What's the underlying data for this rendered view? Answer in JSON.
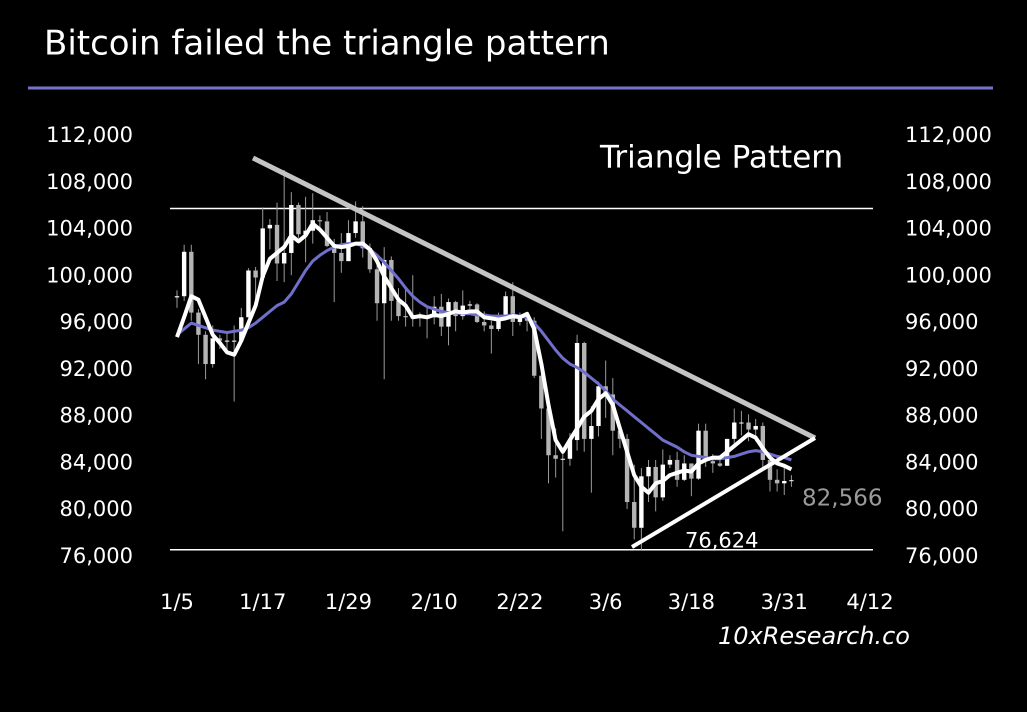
{
  "chart_data": {
    "type": "candlestick",
    "title": "Bitcoin failed the triangle pattern",
    "annotation": "Triangle Pattern",
    "source": "10xResearch.co",
    "last_label": {
      "value": 82566,
      "label": "82,566"
    },
    "low_label": {
      "value": 76624,
      "label": "76,624"
    },
    "reference_lines": [
      105800,
      76624
    ],
    "x": [
      "1/5",
      "1/6",
      "1/7",
      "1/8",
      "1/9",
      "1/10",
      "1/11",
      "1/12",
      "1/13",
      "1/14",
      "1/15",
      "1/16",
      "1/17",
      "1/18",
      "1/19",
      "1/20",
      "1/21",
      "1/22",
      "1/23",
      "1/24",
      "1/25",
      "1/26",
      "1/27",
      "1/28",
      "1/29",
      "1/30",
      "1/31",
      "2/1",
      "2/2",
      "2/3",
      "2/4",
      "2/5",
      "2/6",
      "2/7",
      "2/8",
      "2/9",
      "2/10",
      "2/11",
      "2/12",
      "2/13",
      "2/14",
      "2/15",
      "2/16",
      "2/17",
      "2/18",
      "2/19",
      "2/20",
      "2/21",
      "2/22",
      "2/23",
      "2/24",
      "2/25",
      "2/26",
      "2/27",
      "2/28",
      "3/1",
      "3/2",
      "3/3",
      "3/4",
      "3/5",
      "3/6",
      "3/7",
      "3/8",
      "3/9",
      "3/10",
      "3/11",
      "3/12",
      "3/13",
      "3/14",
      "3/15",
      "3/16",
      "3/17",
      "3/18",
      "3/19",
      "3/20",
      "3/21",
      "3/22",
      "3/23",
      "3/24",
      "3/25",
      "3/26",
      "3/27",
      "3/28",
      "3/29",
      "3/30",
      "3/31",
      "4/1"
    ],
    "open": [
      98200,
      98300,
      102100,
      96900,
      95000,
      92500,
      94700,
      94500,
      94500,
      94500,
      96500,
      100500,
      99900,
      104100,
      104400,
      101100,
      102000,
      106100,
      103600,
      103900,
      104800,
      104700,
      102600,
      102000,
      101300,
      103700,
      104700,
      102400,
      100600,
      97700,
      101400,
      97900,
      96600,
      96500,
      96500,
      96600,
      96500,
      97400,
      95700,
      97800,
      96600,
      97500,
      97600,
      96100,
      95800,
      95500,
      96600,
      98300,
      96100,
      96600,
      96200,
      91500,
      88700,
      84700,
      84400,
      84400,
      86000,
      94300,
      86100,
      87200,
      90600,
      89900,
      86800,
      86100,
      80700,
      78500,
      82900,
      83700,
      81100,
      83900,
      84300,
      82600,
      84000,
      82700,
      86800,
      84200,
      84000,
      83800,
      86100,
      87500,
      87500,
      86900,
      87200,
      84300,
      82600,
      82300,
      82500
    ],
    "high": [
      98800,
      102700,
      102700,
      97200,
      95300,
      95800,
      95000,
      95300,
      95800,
      97300,
      100700,
      100800,
      105900,
      104900,
      106300,
      109100,
      107200,
      106300,
      106800,
      107100,
      105200,
      105500,
      103200,
      103700,
      104800,
      106400,
      106000,
      102800,
      101500,
      102500,
      101700,
      99000,
      99200,
      100100,
      96900,
      97300,
      98300,
      98500,
      98100,
      97900,
      98800,
      97900,
      97700,
      97000,
      96200,
      96900,
      98700,
      99500,
      96900,
      96900,
      96500,
      92500,
      89400,
      87000,
      85100,
      86600,
      95000,
      94400,
      88900,
      91000,
      92800,
      91300,
      86900,
      86500,
      83900,
      83600,
      84300,
      84300,
      85200,
      84700,
      85000,
      84700,
      84000,
      87400,
      87400,
      84800,
      84500,
      86100,
      88700,
      88500,
      88200,
      87800,
      87500,
      84500,
      83500,
      83900,
      83000
    ],
    "low": [
      97300,
      97900,
      96200,
      92500,
      91200,
      92200,
      93800,
      93700,
      89300,
      94300,
      96500,
      97300,
      99900,
      102300,
      99600,
      99500,
      100100,
      103300,
      101200,
      102800,
      104100,
      102500,
      97800,
      100300,
      101300,
      103300,
      101600,
      100300,
      96200,
      91200,
      96200,
      96200,
      95700,
      95700,
      95700,
      94700,
      95900,
      94900,
      94100,
      95300,
      96300,
      97200,
      96000,
      95300,
      93400,
      95300,
      96400,
      94900,
      95800,
      95300,
      91300,
      86100,
      82300,
      82800,
      78200,
      83800,
      85100,
      85000,
      81500,
      86300,
      87900,
      84700,
      85300,
      80100,
      77500,
      76624,
      80700,
      79900,
      80800,
      83600,
      82000,
      82500,
      81200,
      82600,
      83700,
      83200,
      83700,
      83800,
      85600,
      86400,
      85900,
      85900,
      83700,
      81600,
      81600,
      81300,
      82000
    ],
    "close": [
      98300,
      102100,
      96900,
      95000,
      92500,
      94700,
      94500,
      94500,
      94500,
      96500,
      100500,
      99900,
      104100,
      104400,
      101100,
      102000,
      106100,
      103600,
      103900,
      104800,
      104700,
      102600,
      102000,
      101300,
      103700,
      104700,
      102400,
      100600,
      97700,
      101400,
      97900,
      96600,
      96500,
      96500,
      96600,
      96500,
      97400,
      95700,
      97800,
      96600,
      97500,
      97600,
      96100,
      95800,
      95500,
      96600,
      98300,
      96100,
      96600,
      96200,
      91500,
      88700,
      84700,
      84400,
      84400,
      86000,
      94300,
      86100,
      87200,
      90600,
      89900,
      86800,
      86100,
      80700,
      78500,
      82900,
      83700,
      81100,
      83900,
      84300,
      82600,
      84000,
      82700,
      86800,
      84200,
      84000,
      83800,
      86100,
      87500,
      87500,
      86900,
      87200,
      84300,
      82600,
      82300,
      82500,
      82566
    ],
    "up_color": "#ffffff",
    "down_color": "#b4b4b4",
    "series": [
      {
        "color": "#7070cc",
        "values": [
          95000,
          95500,
          96000,
          95800,
          95600,
          95400,
          95300,
          95200,
          95300,
          95400,
          95600,
          96000,
          96500,
          97000,
          97500,
          97800,
          98500,
          99500,
          100500,
          101300,
          101800,
          102200,
          102500,
          102700,
          102800,
          102800,
          102600,
          102300,
          101800,
          101200,
          100500,
          99800,
          99000,
          98300,
          97800,
          97400,
          97200,
          97000,
          96900,
          96900,
          96800,
          96800,
          96700,
          96700,
          96600,
          96600,
          96600,
          96700,
          96600,
          96500,
          96000,
          95300,
          94500,
          93700,
          93000,
          92500,
          92200,
          91800,
          91300,
          90800,
          90200,
          89500,
          89000,
          88500,
          88000,
          87500,
          87000,
          86500,
          86000,
          85700,
          85400,
          85000,
          84700,
          84600,
          84500,
          84400,
          84400,
          84500,
          84600,
          84800,
          85000,
          85100,
          85000,
          84800,
          84600,
          84500,
          84300
        ]
      },
      {
        "color": "#ffffff",
        "values": [
          94800,
          96500,
          98300,
          98000,
          96500,
          95000,
          94300,
          93500,
          93300,
          94500,
          96000,
          97500,
          100000,
          101500,
          102000,
          102500,
          103500,
          103000,
          103500,
          104500,
          104000,
          103300,
          102600,
          102500,
          102600,
          102800,
          102800,
          102300,
          101300,
          100000,
          99000,
          98000,
          97500,
          96500,
          96600,
          96500,
          96700,
          96600,
          96800,
          97000,
          96900,
          97000,
          97000,
          96500,
          96400,
          96300,
          96400,
          96600,
          96500,
          96800,
          95500,
          92500,
          89000,
          86000,
          85000,
          86000,
          87000,
          88000,
          88500,
          89500,
          90000,
          89000,
          87000,
          85000,
          83000,
          82000,
          81500,
          82300,
          82500,
          83000,
          83200,
          83400,
          83300,
          84000,
          84300,
          84500,
          84500,
          85000,
          85500,
          86000,
          86500,
          86200,
          85300,
          84500,
          84000,
          83800,
          83500
        ]
      }
    ],
    "xlim": [
      "1/5",
      "4/12"
    ],
    "xticks": [
      "1/5",
      "1/17",
      "1/29",
      "2/10",
      "2/22",
      "3/6",
      "3/18",
      "3/31",
      "4/12"
    ],
    "ylim": [
      76000,
      112000
    ],
    "yticks": [
      {
        "value": 76000,
        "label": "76,000"
      },
      {
        "value": 80000,
        "label": "80,000"
      },
      {
        "value": 84000,
        "label": "84,000"
      },
      {
        "value": 88000,
        "label": "88,000"
      },
      {
        "value": 92000,
        "label": "92,000"
      },
      {
        "value": 96000,
        "label": "96,000"
      },
      {
        "value": 100000,
        "label": "100,000"
      },
      {
        "value": 104000,
        "label": "104,000"
      },
      {
        "value": 108000,
        "label": "108,000"
      },
      {
        "value": 112000,
        "label": "112,000"
      }
    ],
    "y2lim": [
      76000,
      112000
    ],
    "y2ticks": [
      {
        "value": 76000,
        "label": "76,000"
      },
      {
        "value": 80000,
        "label": "80,000"
      },
      {
        "value": 84000,
        "label": "84,000"
      },
      {
        "value": 88000,
        "label": "88,000"
      },
      {
        "value": 92000,
        "label": "92,000"
      },
      {
        "value": 96000,
        "label": "96,000"
      },
      {
        "value": 100000,
        "label": "100,000"
      },
      {
        "value": 104000,
        "label": "104,000"
      },
      {
        "value": 108000,
        "label": "108,000"
      },
      {
        "value": 112000,
        "label": "112,000"
      }
    ]
  }
}
